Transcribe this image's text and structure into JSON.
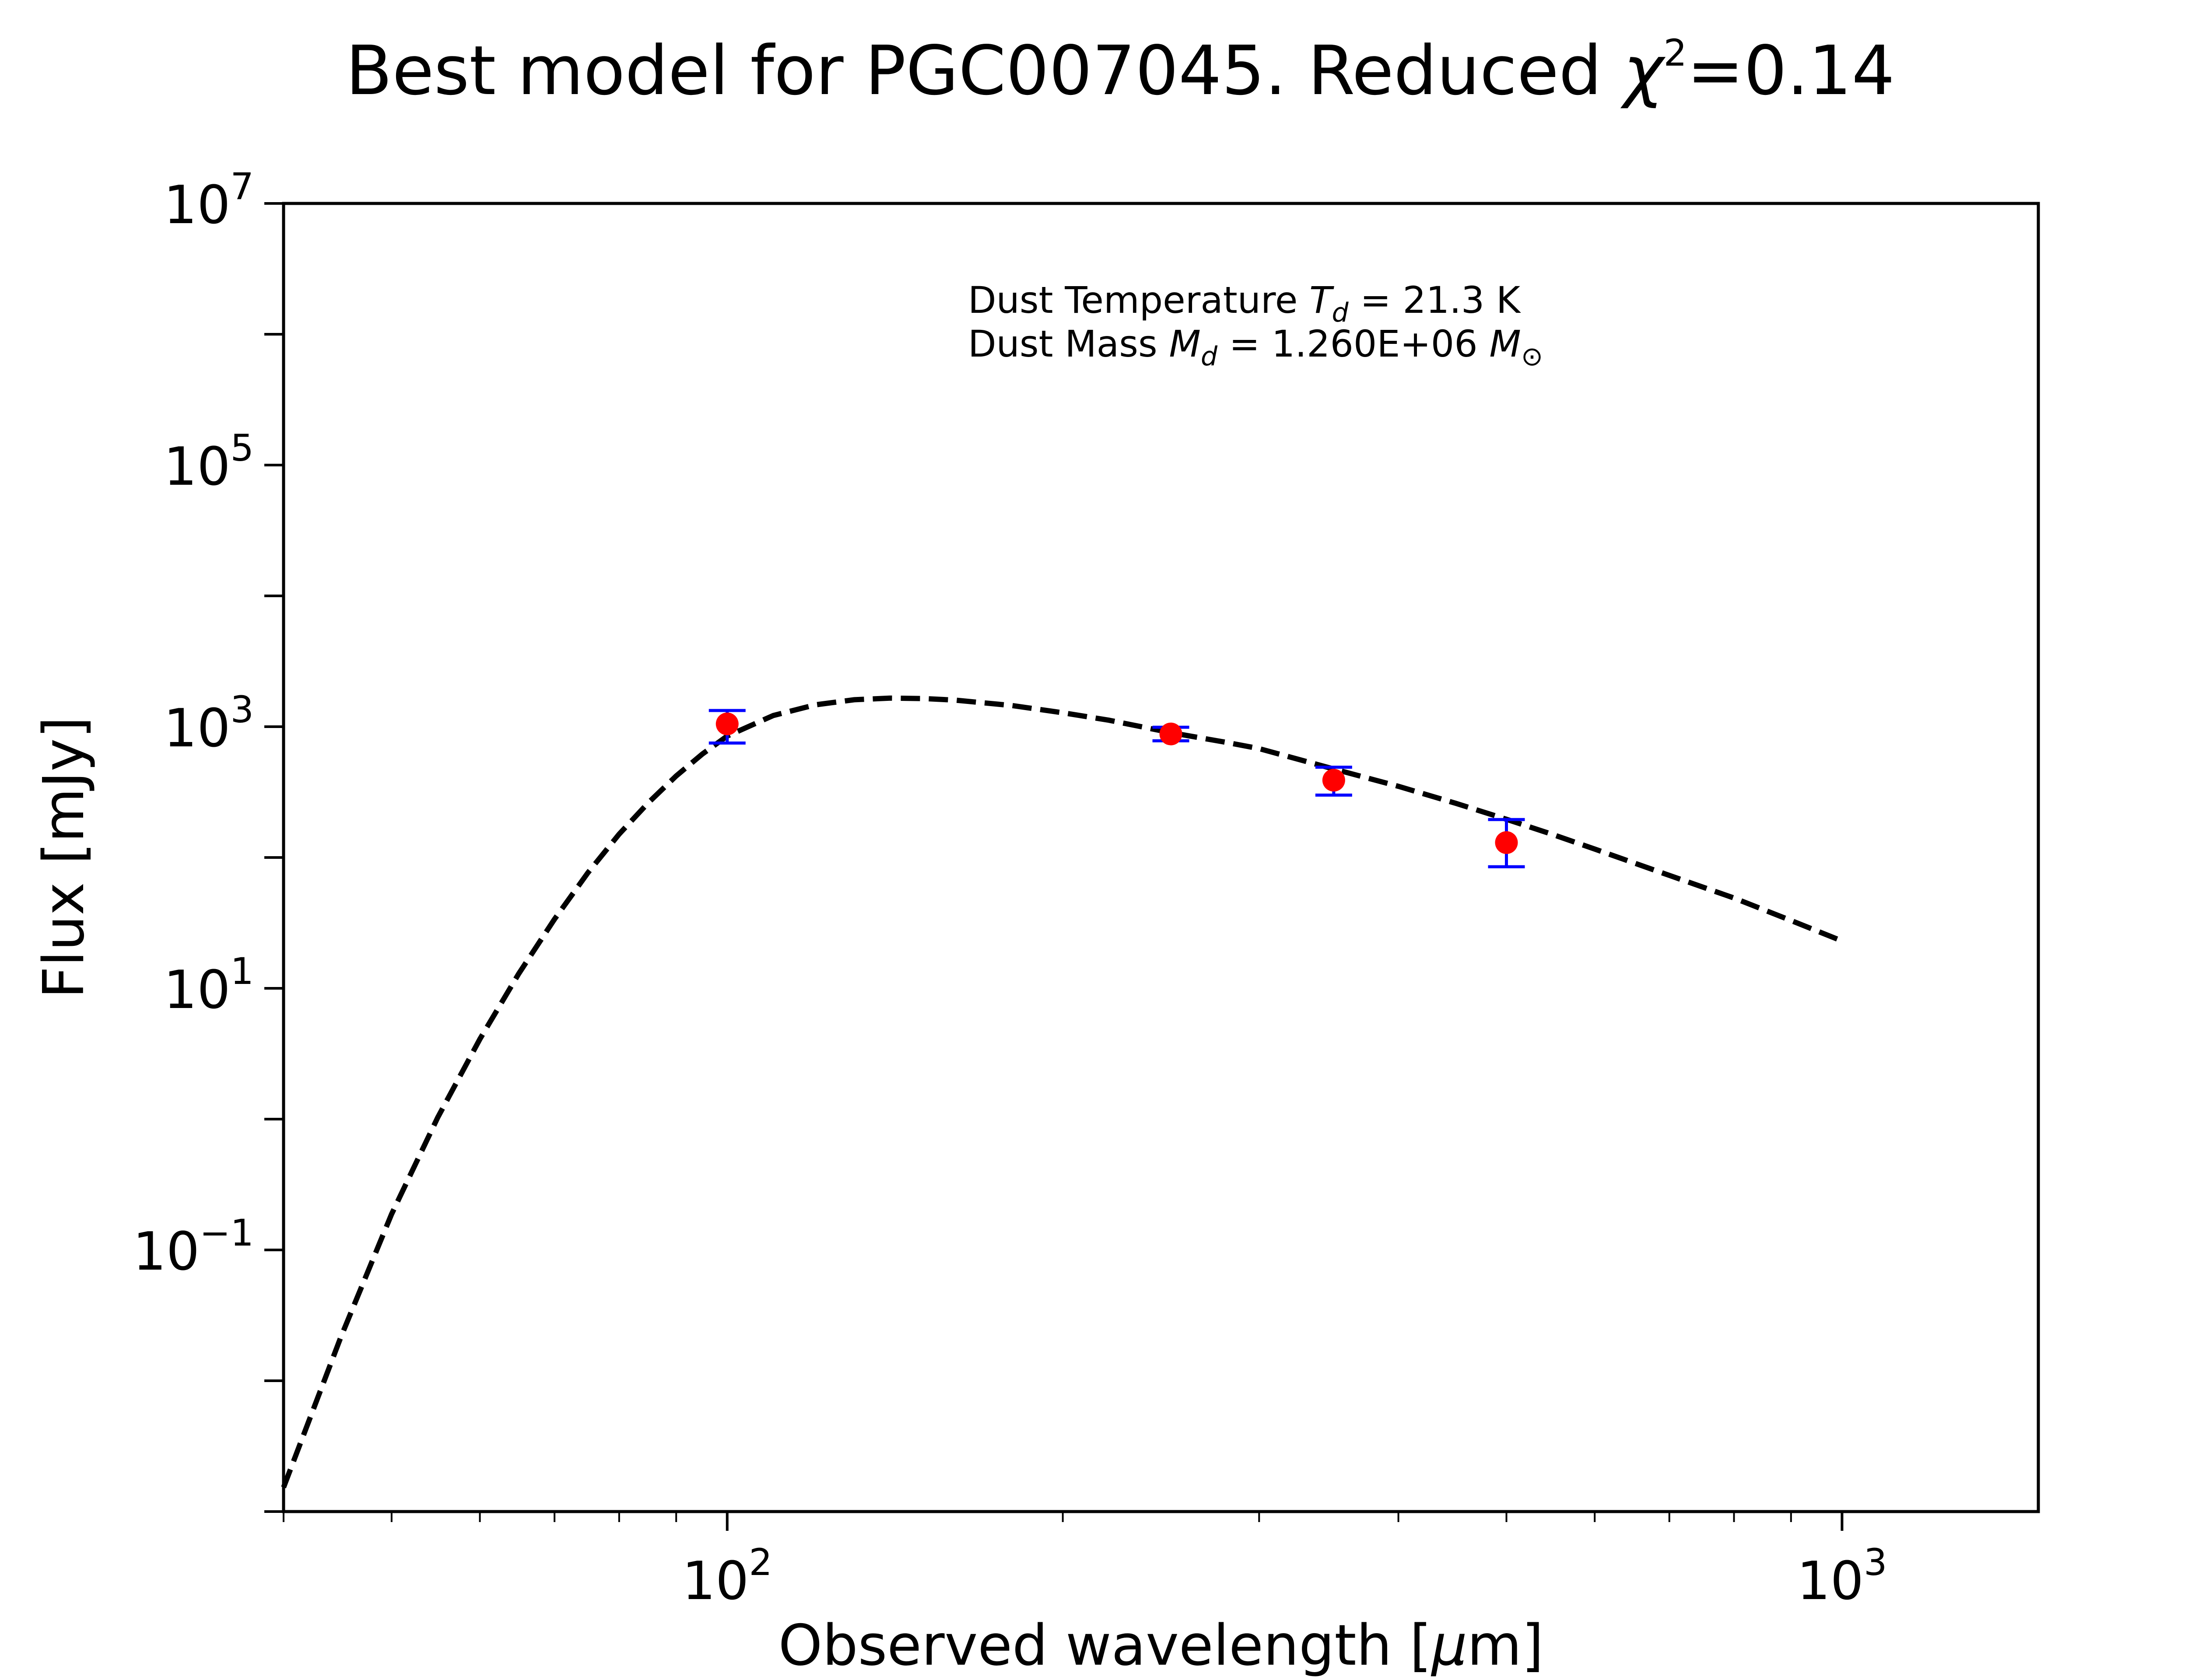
{
  "chart_data": {
    "type": "scatter",
    "title": "Best model for PGC007045. Reduced χ²=0.14",
    "title_parts": {
      "prefix": "Best model for PGC007045. Reduced ",
      "chi": "χ",
      "chi_exp": "2",
      "suffix": "=0.14"
    },
    "xlabel": "Observed wavelength [μm]",
    "xlabel_parts": {
      "prefix": "Observed wavelength [",
      "mu": "μ",
      "suffix": "m]"
    },
    "ylabel": "Flux [mJy]",
    "x_scale": "log",
    "y_scale": "log",
    "xlim": [
      40,
      1500
    ],
    "ylim": [
      0.001,
      10000000
    ],
    "x_ticks": [
      {
        "value": 100,
        "base": "10",
        "exp": "2"
      },
      {
        "value": 1000,
        "base": "10",
        "exp": "3"
      }
    ],
    "y_ticks": [
      {
        "value": 0.1,
        "base": "10",
        "exp": "−1"
      },
      {
        "value": 10,
        "base": "10",
        "exp": "1"
      },
      {
        "value": 1000,
        "base": "10",
        "exp": "3"
      },
      {
        "value": 100000,
        "base": "10",
        "exp": "5"
      },
      {
        "value": 10000000,
        "base": "10",
        "exp": "7"
      }
    ],
    "grid": false,
    "annotations": {
      "temperature": {
        "prefix": "Dust Temperature ",
        "symbol": "T",
        "subscript": "d",
        "value": " = 21.3 K"
      },
      "mass": {
        "prefix": "Dust Mass ",
        "symbol": "M",
        "subscript": "d",
        "value": " = 1.260E+06 ",
        "unit_symbol": "M",
        "unit_subscript": "⊙"
      }
    },
    "series": [
      {
        "kind": "model",
        "style": "dashed",
        "color": "#000000",
        "x": [
          40,
          45,
          50,
          55,
          60,
          65,
          70,
          75,
          80,
          85,
          90,
          95,
          100,
          110,
          120,
          130,
          140,
          150,
          160,
          180,
          200,
          220,
          250,
          280,
          300,
          350,
          400,
          450,
          500,
          550,
          600,
          700,
          800,
          900,
          1000
        ],
        "y": [
          0.00153,
          0.0213,
          0.188,
          1.03,
          4.09,
          12.9,
          33.8,
          76.5,
          151,
          263,
          420,
          618,
          848,
          1218,
          1470,
          1607,
          1654,
          1641,
          1597,
          1452,
          1277,
          1121,
          900,
          760,
          680,
          475,
          350,
          260,
          196,
          150,
          116,
          73,
          49,
          33,
          23
        ]
      },
      {
        "kind": "observed",
        "marker_color": "#ff0000",
        "error_color": "#0000ff",
        "x": [
          100,
          250,
          350,
          500
        ],
        "y": [
          1050,
          880,
          390,
          130
        ],
        "y_err_low": [
          300,
          100,
          90,
          45
        ],
        "y_err_high": [
          280,
          110,
          100,
          65
        ]
      }
    ]
  }
}
